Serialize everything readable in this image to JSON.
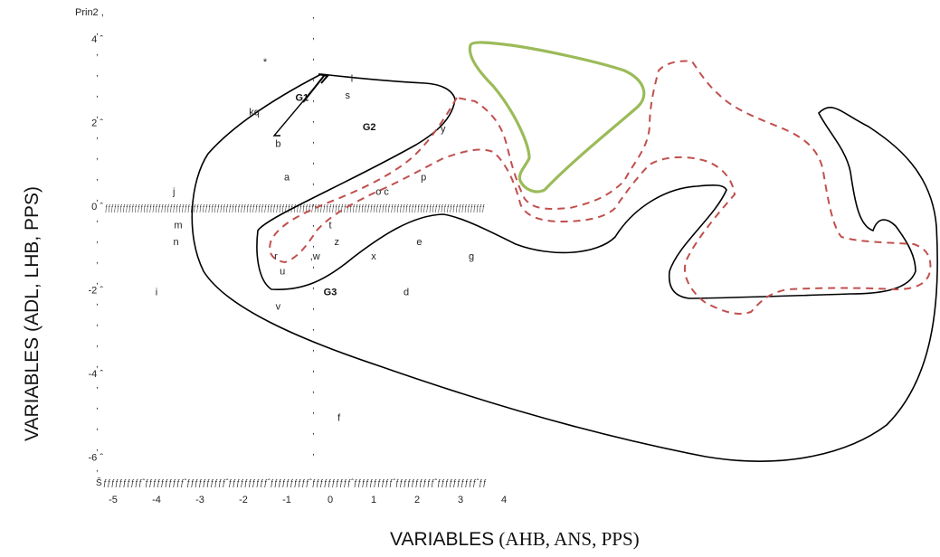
{
  "chart_data": {
    "type": "scatter",
    "title": "",
    "corner_label": "Prin2 ,",
    "xlabel": "VARIABLES (AHB, ANS, PPS)",
    "xlabel_parts": [
      "VARIABLES",
      " (AHB, ANS, PPS)"
    ],
    "ylabel": "VARIABLES  (ADL, LHB, PPS)",
    "xlim": [
      -5,
      4
    ],
    "ylim": [
      -6.5,
      4.5
    ],
    "x_ticks": [
      -5,
      -4,
      -3,
      -2,
      -1,
      0,
      1,
      2,
      3,
      4
    ],
    "x_tick_labels": [
      "-5",
      "-4",
      "-3",
      "-2",
      "-1",
      "0",
      "1",
      "2",
      "3",
      "4"
    ],
    "y_ticks": [
      4,
      2,
      0,
      -2,
      -4,
      -6
    ],
    "y_tick_labels": [
      "4 ˆ",
      "2 ˆ",
      "0 ˆ",
      "-2 ˆ",
      "-4 ˆ",
      "-6 ˆ"
    ],
    "x_axis_line_text": "ƒƒƒƒƒƒƒƒƒƒˆƒƒƒƒƒƒƒƒƒƒˆƒƒƒƒƒƒƒƒƒƒˆƒƒƒƒƒƒƒƒƒƒˆƒƒƒƒƒƒƒƒƒƒˆƒƒƒƒƒƒƒƒƒƒˆƒƒƒƒƒƒƒƒƒƒˆƒƒƒƒƒƒƒƒƒƒˆƒƒƒƒƒƒƒƒƒƒˆƒƒ",
    "x_axis_corner": "Š",
    "zero_line_text": "ƒƒƒƒƒƒƒƒƒƒƒƒƒƒƒƒƒƒƒƒƒƒƒƒƒƒƒƒƒƒƒƒƒƒƒƒƒƒƒƒƒƒƒƒƒƒƒƒƒƒƒƒƒƒƒƒƒƒƒƒƒƒƒƒƒƒƒƒƒƒƒƒƒƒƒƒƒƒƒƒƒƒƒƒƒƒƒƒƒƒƒƒƒƒƒƒƒƒƒƒƒƒƒƒƒƒƒƒƒƒƒƒƒƒƒƒƒƒƒƒƒƒƒƒƒƒƒƒƒ",
    "tick_mark": ",",
    "grid": false,
    "points": [
      {
        "label": "*",
        "x": -1.5,
        "y": 3.5
      },
      {
        "label": "l",
        "x": 0.5,
        "y": 3.1
      },
      {
        "label": "s",
        "x": 0.4,
        "y": 2.7
      },
      {
        "label": "kq",
        "x": -1.75,
        "y": 2.3
      },
      {
        "label": "y",
        "x": 2.6,
        "y": 1.9
      },
      {
        "label": "b",
        "x": -1.2,
        "y": 1.55
      },
      {
        "label": "a",
        "x": -1.0,
        "y": 0.75
      },
      {
        "label": "p",
        "x": 2.15,
        "y": 0.75
      },
      {
        "label": "j",
        "x": -3.6,
        "y": 0.4
      },
      {
        "label": "o c",
        "x": 1.2,
        "y": 0.4
      },
      {
        "label": "m",
        "x": -3.5,
        "y": -0.4
      },
      {
        "label": "t",
        "x": 0.0,
        "y": -0.4
      },
      {
        "label": "n",
        "x": -3.55,
        "y": -0.8
      },
      {
        "label": "z",
        "x": 0.15,
        "y": -0.8
      },
      {
        "label": "e",
        "x": 2.05,
        "y": -0.8
      },
      {
        "label": "r",
        "x": -1.25,
        "y": -1.15
      },
      {
        "label": ",w",
        "x": -0.35,
        "y": -1.15
      },
      {
        "label": "x",
        "x": 1.0,
        "y": -1.15
      },
      {
        "label": "g",
        "x": 3.25,
        "y": -1.15
      },
      {
        "label": "u",
        "x": -1.1,
        "y": -1.5
      },
      {
        "label": "i",
        "x": -4.0,
        "y": -2.0
      },
      {
        "label": "d",
        "x": 1.75,
        "y": -2.0
      },
      {
        "label": "v",
        "x": -1.2,
        "y": -2.35
      },
      {
        "label": "f",
        "x": 0.2,
        "y": -5.0
      }
    ],
    "group_labels": [
      {
        "label": "G1",
        "x": -0.65,
        "y": 2.65
      },
      {
        "label": "G2",
        "x": 0.9,
        "y": 1.95
      },
      {
        "label": "G3",
        "x": 0.0,
        "y": -2.0
      }
    ],
    "series": [
      {
        "values": [],
        "color": "#000000",
        "style": "solid"
      },
      {
        "values": [],
        "color": "#000000",
        "style": "solid"
      },
      {
        "values": [],
        "color": "#9bbb59",
        "style": "solid"
      },
      {
        "values": [],
        "color": "#c0504d",
        "style": "dashed"
      }
    ]
  }
}
